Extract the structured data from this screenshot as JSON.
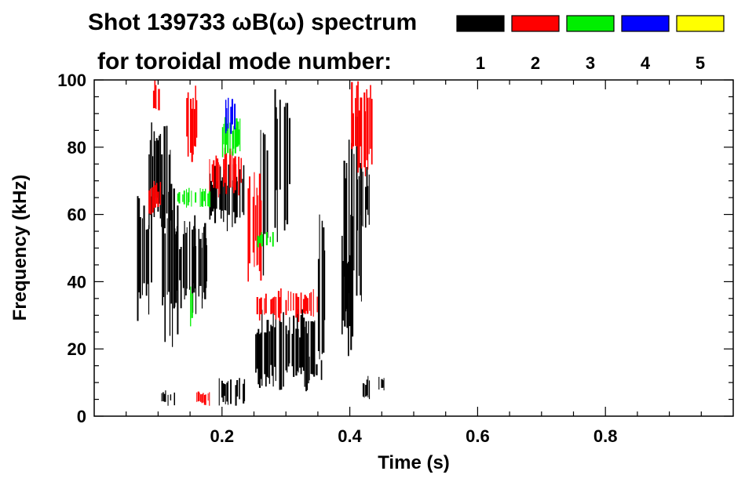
{
  "chart_data": {
    "type": "heatmap",
    "title_line1": "Shot 139733 ωB(ω) spectrum",
    "title_line2": "for toroidal mode number:",
    "xlabel": "Time (s)",
    "ylabel": "Frequency (kHz)",
    "xlim": [
      0.0,
      1.0
    ],
    "ylim": [
      0,
      100
    ],
    "x_ticks": [
      0.2,
      0.4,
      0.6,
      0.8
    ],
    "x_tick_labels": [
      "0.2",
      "0.4",
      "0.6",
      "0.8"
    ],
    "y_ticks": [
      0,
      20,
      40,
      60,
      80,
      100
    ],
    "y_tick_labels": [
      "0",
      "20",
      "40",
      "60",
      "80",
      "100"
    ],
    "legend": [
      {
        "label": "1",
        "color": "#000000"
      },
      {
        "label": "2",
        "color": "#ff0000"
      },
      {
        "label": "3",
        "color": "#00ee00"
      },
      {
        "label": "4",
        "color": "#0000ff"
      },
      {
        "label": "5",
        "color": "#ffff00"
      }
    ],
    "regions": [
      {
        "mode": 1,
        "t": [
          0.065,
          0.09
        ],
        "f": [
          25,
          70
        ]
      },
      {
        "mode": 1,
        "t": [
          0.085,
          0.12
        ],
        "f": [
          55,
          88
        ]
      },
      {
        "mode": 1,
        "t": [
          0.1,
          0.13
        ],
        "f": [
          20,
          70
        ]
      },
      {
        "mode": 1,
        "t": [
          0.125,
          0.175
        ],
        "f": [
          30,
          60
        ]
      },
      {
        "mode": 1,
        "t": [
          0.155,
          0.175
        ],
        "f": [
          35,
          57
        ]
      },
      {
        "mode": 1,
        "t": [
          0.18,
          0.235
        ],
        "f": [
          55,
          75
        ]
      },
      {
        "mode": 1,
        "t": [
          0.105,
          0.125
        ],
        "f": [
          3,
          8
        ]
      },
      {
        "mode": 1,
        "t": [
          0.195,
          0.235
        ],
        "f": [
          3,
          12
        ]
      },
      {
        "mode": 1,
        "t": [
          0.25,
          0.35
        ],
        "f": [
          7,
          32
        ]
      },
      {
        "mode": 1,
        "t": [
          0.335,
          0.355
        ],
        "f": [
          10,
          18
        ]
      },
      {
        "mode": 1,
        "t": [
          0.26,
          0.27
        ],
        "f": [
          40,
          100
        ]
      },
      {
        "mode": 1,
        "t": [
          0.28,
          0.29
        ],
        "f": [
          50,
          100
        ]
      },
      {
        "mode": 1,
        "t": [
          0.295,
          0.305
        ],
        "f": [
          55,
          100
        ]
      },
      {
        "mode": 1,
        "t": [
          0.35,
          0.36
        ],
        "f": [
          15,
          60
        ]
      },
      {
        "mode": 1,
        "t": [
          0.385,
          0.405
        ],
        "f": [
          15,
          60
        ]
      },
      {
        "mode": 1,
        "t": [
          0.39,
          0.42
        ],
        "f": [
          30,
          90
        ]
      },
      {
        "mode": 1,
        "t": [
          0.41,
          0.43
        ],
        "f": [
          55,
          75
        ]
      },
      {
        "mode": 1,
        "t": [
          0.42,
          0.43
        ],
        "f": [
          4,
          12
        ]
      },
      {
        "mode": 1,
        "t": [
          0.445,
          0.46
        ],
        "f": [
          7,
          12
        ]
      },
      {
        "mode": 2,
        "t": [
          0.18,
          0.235
        ],
        "f": [
          65,
          80
        ]
      },
      {
        "mode": 2,
        "t": [
          0.25,
          0.35
        ],
        "f": [
          28,
          38
        ]
      },
      {
        "mode": 2,
        "t": [
          0.4,
          0.435
        ],
        "f": [
          70,
          100
        ]
      },
      {
        "mode": 2,
        "t": [
          0.09,
          0.1
        ],
        "f": [
          90,
          100
        ]
      },
      {
        "mode": 2,
        "t": [
          0.14,
          0.16
        ],
        "f": [
          75,
          100
        ]
      },
      {
        "mode": 2,
        "t": [
          0.085,
          0.105
        ],
        "f": [
          60,
          70
        ]
      },
      {
        "mode": 2,
        "t": [
          0.16,
          0.18
        ],
        "f": [
          3,
          8
        ]
      },
      {
        "mode": 2,
        "t": [
          0.24,
          0.26
        ],
        "f": [
          40,
          75
        ]
      },
      {
        "mode": 3,
        "t": [
          0.2,
          0.23
        ],
        "f": [
          77,
          89
        ]
      },
      {
        "mode": 3,
        "t": [
          0.13,
          0.18
        ],
        "f": [
          62,
          68
        ]
      },
      {
        "mode": 3,
        "t": [
          0.15,
          0.16
        ],
        "f": [
          25,
          40
        ]
      },
      {
        "mode": 3,
        "t": [
          0.255,
          0.28
        ],
        "f": [
          50,
          55
        ]
      },
      {
        "mode": 4,
        "t": [
          0.205,
          0.22
        ],
        "f": [
          83,
          95
        ]
      }
    ]
  }
}
